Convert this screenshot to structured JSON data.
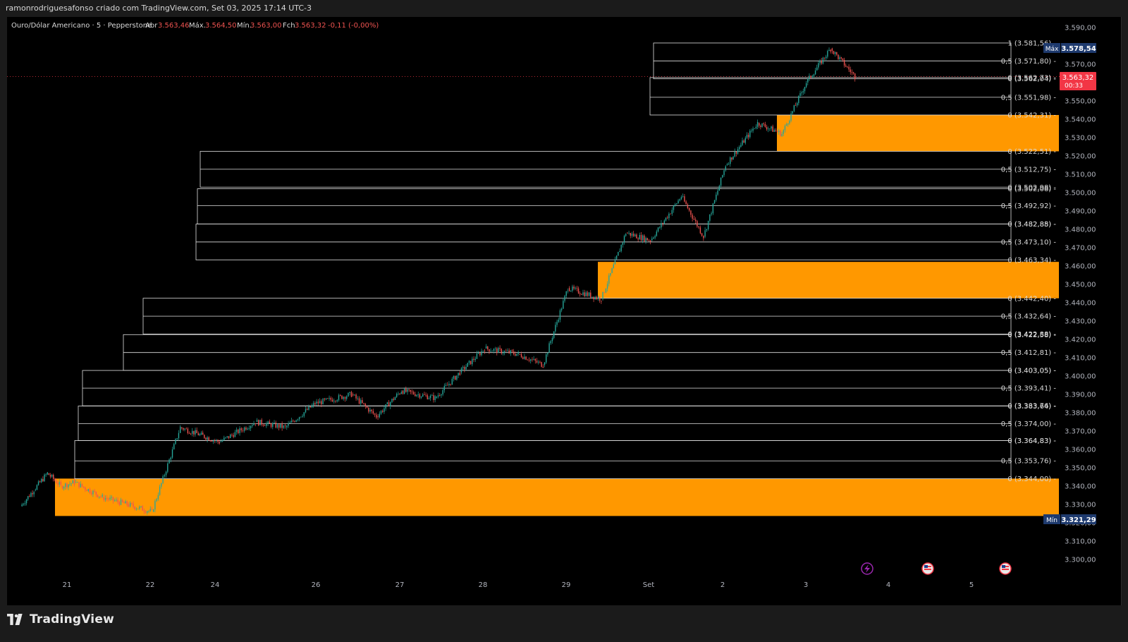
{
  "header": {
    "attribution": "ramonrodriguesafonso criado com TradingView.com, Set 03, 2025 17:14 UTC-3"
  },
  "legend": {
    "symbol": "Ouro/Dólar Americano · 5 · Pepperstone",
    "open_label": "Abr",
    "open": "3.563,46",
    "high_label": "Máx.",
    "high": "3.564,50",
    "low_label": "Mín.",
    "low": "3.563,00",
    "close_label": "Fch",
    "close": "3.563,32",
    "change": "-0,11 (-0,00%)"
  },
  "colors": {
    "background": "#000000",
    "zone": "#ff9800",
    "box_border": "#e0e0e0",
    "up_candle": "#26a69a",
    "down_candle": "#ef5350",
    "price_tag": "#f23645",
    "marker_tag": "#1e3a6e",
    "axis_text": "#b2b5be"
  },
  "price_axis": {
    "ticks": [
      "3.590,00",
      "3.580,00",
      "3.570,00",
      "3.560,00",
      "3.550,00",
      "3.540,00",
      "3.530,00",
      "3.520,00",
      "3.510,00",
      "3.500,00",
      "3.490,00",
      "3.480,00",
      "3.470,00",
      "3.460,00",
      "3.450,00",
      "3.440,00",
      "3.430,00",
      "3.420,00",
      "3.410,00",
      "3.400,00",
      "3.390,00",
      "3.380,00",
      "3.370,00",
      "3.360,00",
      "3.350,00",
      "3.340,00",
      "3.330,00",
      "3.320,00",
      "3.310,00",
      "3.300,00"
    ],
    "max_label": "Máx",
    "max_value": "3.578,54",
    "min_label": "Mín",
    "min_value": "3.321,29",
    "current_price": "3.563,32",
    "countdown": "00:33"
  },
  "time_axis": {
    "labels": [
      "21",
      "22",
      "24",
      "26",
      "27",
      "28",
      "29",
      "Set",
      "2",
      "3",
      "4",
      "5"
    ]
  },
  "brand": {
    "name": "TradingView"
  },
  "chart_data": {
    "type": "candlestick",
    "symbol": "Ouro/Dólar Americano",
    "interval": "5",
    "ylim": [
      3295,
      3595
    ],
    "grid": false,
    "close_path": [
      {
        "x": "21",
        "y": 3329
      },
      {
        "x": "21",
        "y": 3338
      },
      {
        "x": "21",
        "y": 3347
      },
      {
        "x": "21",
        "y": 3340
      },
      {
        "x": "21",
        "y": 3342
      },
      {
        "x": "22",
        "y": 3334
      },
      {
        "x": "22",
        "y": 3330
      },
      {
        "x": "22",
        "y": 3326
      },
      {
        "x": "24",
        "y": 3372
      },
      {
        "x": "24",
        "y": 3368
      },
      {
        "x": "24",
        "y": 3364
      },
      {
        "x": "26",
        "y": 3375
      },
      {
        "x": "26",
        "y": 3372
      },
      {
        "x": "26",
        "y": 3385
      },
      {
        "x": "27",
        "y": 3390
      },
      {
        "x": "27",
        "y": 3378
      },
      {
        "x": "27",
        "y": 3392
      },
      {
        "x": "28",
        "y": 3388
      },
      {
        "x": "28",
        "y": 3402
      },
      {
        "x": "28",
        "y": 3415
      },
      {
        "x": "29",
        "y": 3412
      },
      {
        "x": "29",
        "y": 3406
      },
      {
        "x": "29",
        "y": 3448
      },
      {
        "x": "Set",
        "y": 3442
      },
      {
        "x": "Set",
        "y": 3478
      },
      {
        "x": "Set",
        "y": 3474
      },
      {
        "x": "2",
        "y": 3498
      },
      {
        "x": "2",
        "y": 3476
      },
      {
        "x": "2",
        "y": 3515
      },
      {
        "x": "3",
        "y": 3538
      },
      {
        "x": "3",
        "y": 3532
      },
      {
        "x": "3",
        "y": 3560
      },
      {
        "x": "3",
        "y": 3578.54
      },
      {
        "x": "3",
        "y": 3563.32
      }
    ],
    "zones": [
      {
        "top": 3542.31,
        "bottom": 3522.51
      },
      {
        "top": 3462.24,
        "bottom": 3442.4
      },
      {
        "top": 3344.09,
        "bottom": 3323.7
      }
    ],
    "fib_boxes": [
      {
        "levels": [
          {
            "ratio": "1",
            "value": "3.581,56"
          },
          {
            "ratio": "0,5",
            "value": "3.571,80"
          },
          {
            "ratio": "0",
            "value": "3.562,04"
          }
        ]
      },
      {
        "levels": [
          {
            "ratio": "0",
            "value": "3.562,73"
          },
          {
            "ratio": "0,5",
            "value": "3.551,98"
          },
          {
            "ratio": "0",
            "value": "3.542,31"
          }
        ]
      },
      {
        "levels": [
          {
            "ratio": "0",
            "value": "3.522,51"
          },
          {
            "ratio": "0,5",
            "value": "3.512,75"
          },
          {
            "ratio": "0",
            "value": "3.502,98"
          }
        ]
      },
      {
        "levels": [
          {
            "ratio": "0",
            "value": "3.502,08"
          },
          {
            "ratio": "0,5",
            "value": "3.492,92"
          },
          {
            "ratio": "0",
            "value": "3.482,88"
          }
        ]
      },
      {
        "levels": [
          {
            "ratio": "0",
            "value": "3.482,85"
          },
          {
            "ratio": "0,5",
            "value": "3.473,10"
          },
          {
            "ratio": "0",
            "value": "3.463,34"
          }
        ]
      },
      {
        "levels": [
          {
            "ratio": "0",
            "value": "3.442,40"
          },
          {
            "ratio": "0,5",
            "value": "3.432,64"
          },
          {
            "ratio": "0",
            "value": "3.422,88"
          }
        ]
      },
      {
        "levels": [
          {
            "ratio": "0",
            "value": "3.422,58"
          },
          {
            "ratio": "0,5",
            "value": "3.412,81"
          },
          {
            "ratio": "0",
            "value": "3.403,05"
          }
        ]
      },
      {
        "levels": [
          {
            "ratio": "0",
            "value": "3.403,05"
          },
          {
            "ratio": "0,5",
            "value": "3.393,41"
          },
          {
            "ratio": "0",
            "value": "3.383,76"
          }
        ]
      },
      {
        "levels": [
          {
            "ratio": "0",
            "value": "3.383,64"
          },
          {
            "ratio": "0,5",
            "value": "3.374,00"
          },
          {
            "ratio": "0",
            "value": "3.364,83"
          }
        ]
      },
      {
        "levels": [
          {
            "ratio": "0",
            "value": "3.364,83"
          },
          {
            "ratio": "0,5",
            "value": "3.353,76"
          },
          {
            "ratio": "0",
            "value": "3.344,00"
          }
        ]
      }
    ]
  }
}
